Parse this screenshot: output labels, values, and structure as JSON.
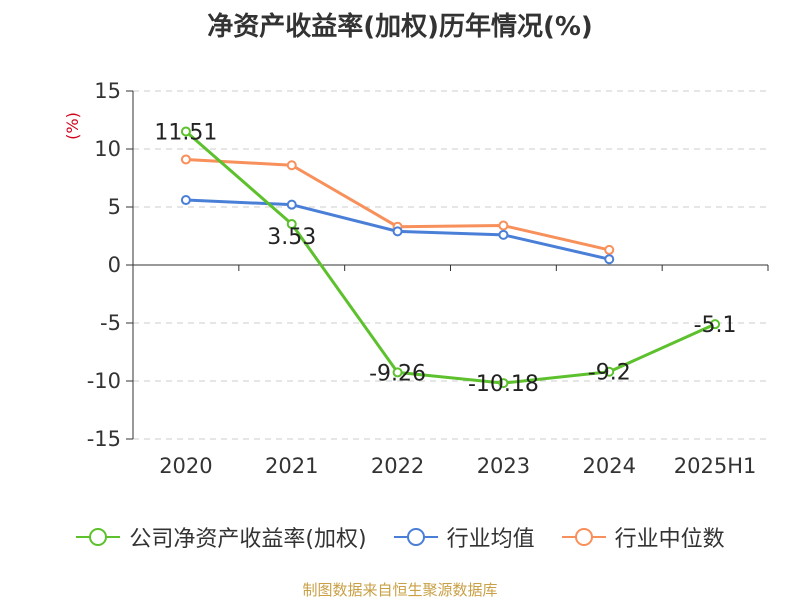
{
  "title": "净资产收益率(加权)历年情况(%)",
  "source_note": "制图数据来自恒生聚源数据库",
  "colors": {
    "company": "#5cc12c",
    "industry_avg": "#4a7fd8",
    "industry_median": "#f7905a",
    "ylabel": "#d0021b",
    "axis": "#333333",
    "grid": "#cccccc",
    "source": "#c9a046"
  },
  "chart_data": {
    "type": "line",
    "title": "净资产收益率(加权)历年情况(%)",
    "xlabel": "",
    "ylabel": "(%)",
    "categories": [
      "2020",
      "2021",
      "2022",
      "2023",
      "2024",
      "2025H1"
    ],
    "ylim": [
      -15,
      15
    ],
    "yticks": [
      15,
      10,
      5,
      0,
      -5,
      -10,
      -15
    ],
    "grid": "horizontal dashed",
    "legend": "bottom",
    "series": [
      {
        "name": "公司净资产收益率(加权)",
        "color_key": "company",
        "values": [
          11.51,
          3.53,
          -9.26,
          -10.18,
          -9.2,
          -5.1
        ],
        "labels": [
          "11.51",
          "3.53",
          "-9.26",
          "-10.18",
          "-9.2",
          "-5.1"
        ]
      },
      {
        "name": "行业均值",
        "color_key": "industry_avg",
        "values": [
          5.6,
          5.2,
          2.9,
          2.6,
          0.5,
          null
        ]
      },
      {
        "name": "行业中位数",
        "color_key": "industry_median",
        "values": [
          9.1,
          8.6,
          3.3,
          3.4,
          1.3,
          null
        ]
      }
    ]
  }
}
